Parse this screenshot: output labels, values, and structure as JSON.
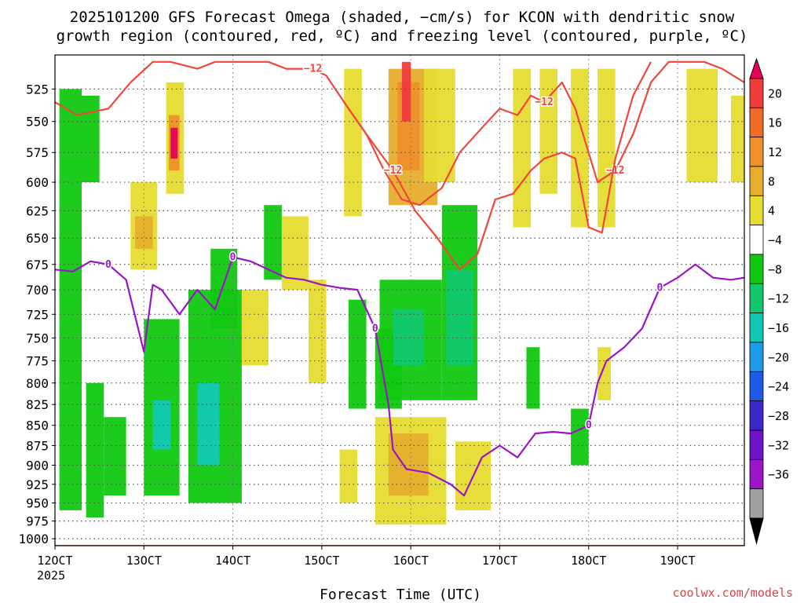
{
  "chart_data": {
    "type": "heatmap",
    "title_line1": "2025101200 GFS Forecast Omega (shaded, −cm/s) for KCON with dendritic snow",
    "title_line2": "growth region (contoured, red, ºC) and freezing level (contoured, purple, ºC)",
    "xlabel": "Forecast Time (UTC)",
    "credit": "coolwx.com/models",
    "x_ticks": [
      "12OCT",
      "13OCT",
      "14OCT",
      "15OCT",
      "16OCT",
      "17OCT",
      "18OCT",
      "19OCT"
    ],
    "x_tick_days": [
      12,
      13,
      14,
      15,
      16,
      17,
      18,
      19
    ],
    "x_first_year": "2025",
    "xlim_days": [
      12,
      19.75
    ],
    "y_ticks": [
      "525",
      "550",
      "575",
      "600",
      "625",
      "650",
      "675",
      "700",
      "725",
      "750",
      "775",
      "800",
      "825",
      "850",
      "875",
      "900",
      "925",
      "950",
      "975",
      "1000"
    ],
    "y_tick_values": [
      525,
      550,
      575,
      600,
      625,
      650,
      675,
      700,
      725,
      750,
      775,
      800,
      825,
      850,
      875,
      900,
      925,
      950,
      975,
      1000
    ],
    "ylim_hpa": [
      500,
      1010
    ],
    "colorbar": {
      "labels": [
        "20",
        "16",
        "12",
        "8",
        "4",
        "−4",
        "−8",
        "−12",
        "−16",
        "−20",
        "−24",
        "−28",
        "−32",
        "−36"
      ],
      "colors": [
        "#e8005a",
        "#f03c3c",
        "#f06a28",
        "#f0902a",
        "#e6ae2c",
        "#e6dc32",
        "#ffffff",
        "#10c810",
        "#12c86e",
        "#12c8b4",
        "#1c9ce6",
        "#1e5ae6",
        "#3a28c8",
        "#6e14c8",
        "#9c14c8",
        "#a0a0a0",
        "#000000"
      ]
    },
    "omega_cells": [
      {
        "t": 12.05,
        "t2": 12.3,
        "p1": 525,
        "p2": 960,
        "v": -6
      },
      {
        "t": 12.3,
        "t2": 12.5,
        "p1": 530,
        "p2": 600,
        "v": -6
      },
      {
        "t": 12.35,
        "t2": 12.55,
        "p1": 800,
        "p2": 970,
        "v": -6
      },
      {
        "t": 12.55,
        "t2": 12.8,
        "p1": 840,
        "p2": 940,
        "v": -6
      },
      {
        "t": 12.85,
        "t2": 13.15,
        "p1": 600,
        "p2": 680,
        "v": 6
      },
      {
        "t": 12.9,
        "t2": 13.1,
        "p1": 630,
        "p2": 660,
        "v": 10
      },
      {
        "t": 13.0,
        "t2": 13.4,
        "p1": 730,
        "p2": 940,
        "v": -6
      },
      {
        "t": 13.1,
        "t2": 13.3,
        "p1": 820,
        "p2": 880,
        "v": -12
      },
      {
        "t": 13.25,
        "t2": 13.45,
        "p1": 520,
        "p2": 610,
        "v": 6
      },
      {
        "t": 13.28,
        "t2": 13.4,
        "p1": 545,
        "p2": 590,
        "v": 14
      },
      {
        "t": 13.3,
        "t2": 13.38,
        "p1": 555,
        "p2": 580,
        "v": 18
      },
      {
        "t": 13.5,
        "t2": 14.1,
        "p1": 700,
        "p2": 950,
        "v": -6
      },
      {
        "t": 13.6,
        "t2": 13.85,
        "p1": 800,
        "p2": 900,
        "v": -12
      },
      {
        "t": 13.75,
        "t2": 14.05,
        "p1": 660,
        "p2": 740,
        "v": -6
      },
      {
        "t": 14.1,
        "t2": 14.4,
        "p1": 700,
        "p2": 780,
        "v": 4
      },
      {
        "t": 14.35,
        "t2": 14.55,
        "p1": 620,
        "p2": 690,
        "v": -6
      },
      {
        "t": 14.55,
        "t2": 14.85,
        "p1": 630,
        "p2": 700,
        "v": 6
      },
      {
        "t": 14.85,
        "t2": 15.05,
        "p1": 690,
        "p2": 800,
        "v": 5
      },
      {
        "t": 15.2,
        "t2": 15.4,
        "p1": 880,
        "p2": 950,
        "v": 5
      },
      {
        "t": 15.25,
        "t2": 15.45,
        "p1": 510,
        "p2": 630,
        "v": 5
      },
      {
        "t": 15.3,
        "t2": 15.5,
        "p1": 710,
        "p2": 830,
        "v": -6
      },
      {
        "t": 15.6,
        "t2": 15.9,
        "p1": 740,
        "p2": 830,
        "v": -6
      },
      {
        "t": 15.65,
        "t2": 16.35,
        "p1": 690,
        "p2": 820,
        "v": -6
      },
      {
        "t": 15.8,
        "t2": 16.15,
        "p1": 720,
        "p2": 780,
        "v": -11
      },
      {
        "t": 15.75,
        "t2": 16.3,
        "p1": 510,
        "p2": 620,
        "v": 9
      },
      {
        "t": 15.85,
        "t2": 16.1,
        "p1": 520,
        "p2": 590,
        "v": 13
      },
      {
        "t": 15.9,
        "t2": 16.0,
        "p1": 505,
        "p2": 550,
        "v": 17
      },
      {
        "t": 16.35,
        "t2": 16.75,
        "p1": 620,
        "p2": 820,
        "v": -6
      },
      {
        "t": 16.4,
        "t2": 16.7,
        "p1": 680,
        "p2": 780,
        "v": -11
      },
      {
        "t": 15.6,
        "t2": 16.4,
        "p1": 840,
        "p2": 980,
        "v": 5
      },
      {
        "t": 15.75,
        "t2": 16.2,
        "p1": 860,
        "p2": 940,
        "v": 9
      },
      {
        "t": 16.5,
        "t2": 16.9,
        "p1": 870,
        "p2": 960,
        "v": 5
      },
      {
        "t": 16.15,
        "t2": 16.5,
        "p1": 510,
        "p2": 600,
        "v": 6
      },
      {
        "t": 17.15,
        "t2": 17.35,
        "p1": 510,
        "p2": 640,
        "v": 6
      },
      {
        "t": 17.45,
        "t2": 17.65,
        "p1": 510,
        "p2": 610,
        "v": 6
      },
      {
        "t": 17.3,
        "t2": 17.45,
        "p1": 760,
        "p2": 830,
        "v": -6
      },
      {
        "t": 17.8,
        "t2": 18.0,
        "p1": 830,
        "p2": 900,
        "v": -6
      },
      {
        "t": 17.8,
        "t2": 18.0,
        "p1": 510,
        "p2": 640,
        "v": 6
      },
      {
        "t": 18.1,
        "t2": 18.3,
        "p1": 510,
        "p2": 640,
        "v": 6
      },
      {
        "t": 18.1,
        "t2": 18.25,
        "p1": 760,
        "p2": 820,
        "v": 5
      },
      {
        "t": 19.1,
        "t2": 19.45,
        "p1": 510,
        "p2": 600,
        "v": 5
      },
      {
        "t": 19.6,
        "t2": 19.75,
        "p1": 530,
        "p2": 600,
        "v": 5
      }
    ],
    "dgz_upper": {
      "label": "−12",
      "t": [
        12,
        12.25,
        12.6,
        12.85,
        13.1,
        13.3,
        13.6,
        13.8,
        14.1,
        14.4,
        14.6,
        14.9,
        15.05,
        15.3,
        15.5,
        15.7,
        15.9,
        16.1,
        16.35,
        16.55,
        16.8,
        17.0,
        17.2,
        17.35,
        17.5,
        17.7,
        17.85,
        18.1,
        18.3,
        18.5,
        18.7,
        18.9,
        19.1,
        19.3,
        19.5,
        19.75
      ],
      "p": [
        535,
        545,
        540,
        520,
        505,
        505,
        510,
        505,
        505,
        505,
        510,
        510,
        515,
        540,
        560,
        590,
        615,
        620,
        605,
        575,
        555,
        540,
        545,
        530,
        535,
        520,
        540,
        600,
        590,
        560,
        520,
        505,
        505,
        505,
        510,
        520
      ]
    },
    "dgz_lower": {
      "label": "−12",
      "t": [
        15.3,
        15.5,
        15.8,
        16.05,
        16.3,
        16.55,
        16.75,
        16.95,
        17.15,
        17.35,
        17.5,
        17.7,
        17.85,
        18.0,
        18.15,
        18.3,
        18.5,
        18.7
      ],
      "p": [
        540,
        560,
        590,
        625,
        650,
        680,
        665,
        615,
        610,
        590,
        580,
        575,
        580,
        640,
        645,
        580,
        530,
        505
      ]
    },
    "freezing_level": {
      "label": "0",
      "t": [
        12,
        12.2,
        12.4,
        12.6,
        12.8,
        13.0,
        13.1,
        13.2,
        13.4,
        13.6,
        13.8,
        14.0,
        14.2,
        14.4,
        14.6,
        14.8,
        15.0,
        15.2,
        15.4,
        15.6,
        15.75,
        15.8,
        15.95,
        16.2,
        16.45,
        16.6,
        16.8,
        17.0,
        17.2,
        17.4,
        17.6,
        17.8,
        18.0,
        18.1,
        18.2,
        18.4,
        18.6,
        18.8,
        19.0,
        19.2,
        19.4,
        19.6,
        19.75
      ],
      "p": [
        680,
        682,
        672,
        675,
        690,
        765,
        695,
        700,
        725,
        700,
        720,
        668,
        672,
        680,
        688,
        690,
        695,
        698,
        700,
        740,
        825,
        880,
        905,
        910,
        925,
        940,
        890,
        875,
        890,
        860,
        858,
        860,
        850,
        800,
        775,
        760,
        740,
        698,
        688,
        675,
        688,
        690,
        688
      ]
    }
  }
}
